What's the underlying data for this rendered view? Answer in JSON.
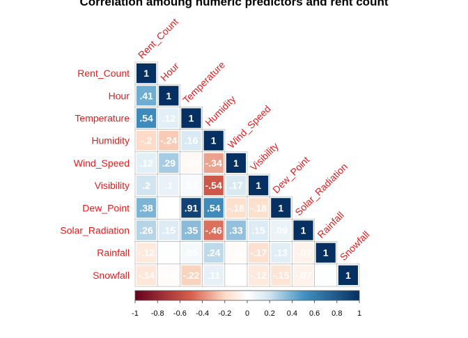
{
  "chart_data": {
    "type": "heatmap",
    "title": "Correlation amoung numeric predictors and rent count",
    "variables": [
      "Rent_Count",
      "Hour",
      "Temperature",
      "Humidity",
      "Wind_Speed",
      "Visibility",
      "Dew_Point",
      "Solar_Radiation",
      "Rainfall",
      "Snowfall"
    ],
    "layout": "lower-triangle",
    "matrix": [
      [
        1
      ],
      [
        0.41,
        1
      ],
      [
        0.54,
        0.12,
        1
      ],
      [
        -0.2,
        -0.24,
        0.16,
        1
      ],
      [
        0.12,
        0.29,
        -0.04,
        -0.34,
        1
      ],
      [
        0.2,
        0.1,
        0.03,
        -0.54,
        0.17,
        1
      ],
      [
        0.38,
        0.0,
        0.91,
        0.54,
        -0.18,
        -0.18,
        1
      ],
      [
        0.26,
        0.15,
        0.35,
        -0.46,
        0.33,
        0.15,
        0.09,
        1
      ],
      [
        -0.12,
        0.01,
        0.05,
        0.24,
        -0.02,
        -0.17,
        0.13,
        -0.07,
        1
      ],
      [
        -0.14,
        -0.02,
        -0.22,
        0.11,
        -0.0,
        -0.12,
        -0.15,
        -0.07,
        0.01,
        1
      ]
    ],
    "colorbar": {
      "range": [
        -1,
        1
      ],
      "ticks": [
        "-1",
        "-0.8",
        "-0.6",
        "-0.4",
        "-0.2",
        "0",
        "0.2",
        "0.4",
        "0.6",
        "0.8",
        "1"
      ],
      "colors": {
        "neg_strong": "#67001F",
        "neg_mid": "#D6604D",
        "neg_light": "#FDDBC7",
        "zero": "#FFFFFF",
        "pos_light": "#D1E5F0",
        "pos_mid": "#4393C3",
        "pos_strong": "#053061"
      },
      "placement": "bottom"
    },
    "label_color": "#E41A1C",
    "grid": true
  }
}
